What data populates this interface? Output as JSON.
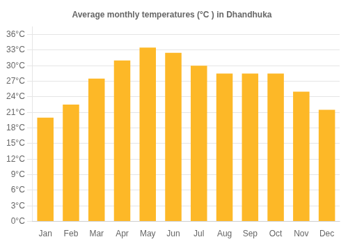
{
  "chart_data": {
    "type": "bar",
    "title": "Average monthly temperatures (°C ) in Dhandhuka",
    "categories": [
      "Jan",
      "Feb",
      "Mar",
      "Apr",
      "May",
      "Jun",
      "Jul",
      "Aug",
      "Sep",
      "Oct",
      "Nov",
      "Dec"
    ],
    "values": [
      20,
      22.5,
      27.5,
      31,
      33.5,
      32.5,
      30,
      28.5,
      28.5,
      28.5,
      25,
      21.5
    ],
    "color": "#FDB827",
    "ylim": [
      0,
      37.5
    ],
    "yticks": [
      {
        "value": 0,
        "label": "0°C"
      },
      {
        "value": 3,
        "label": "3°C"
      },
      {
        "value": 6,
        "label": "6°C"
      },
      {
        "value": 9,
        "label": "9°C"
      },
      {
        "value": 12,
        "label": "12°C"
      },
      {
        "value": 15,
        "label": "15°C"
      },
      {
        "value": 18,
        "label": "18°C"
      },
      {
        "value": 21,
        "label": "21°C"
      },
      {
        "value": 24,
        "label": "24°C"
      },
      {
        "value": 27,
        "label": "27°C"
      },
      {
        "value": 30,
        "label": "30°C"
      },
      {
        "value": 33,
        "label": "33°C"
      },
      {
        "value": 36,
        "label": "36°C"
      }
    ],
    "grid": true
  }
}
